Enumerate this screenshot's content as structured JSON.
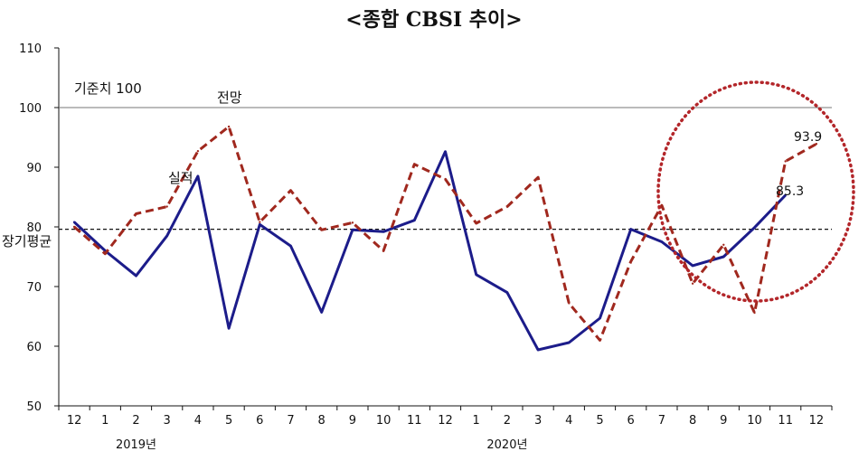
{
  "chart_data": {
    "type": "line",
    "title": "<종합 CBSI 추이>",
    "categories": [
      "12",
      "1",
      "2",
      "3",
      "4",
      "5",
      "6",
      "7",
      "8",
      "9",
      "10",
      "11",
      "12",
      "1",
      "2",
      "3",
      "4",
      "5",
      "6",
      "7",
      "8",
      "9",
      "10",
      "11",
      "12"
    ],
    "year_labels": [
      {
        "text": "2019년",
        "category_index": 2
      },
      {
        "text": "2020년",
        "category_index": 14
      }
    ],
    "ylim": [
      50,
      110
    ],
    "yticks": [
      50,
      60,
      70,
      80,
      90,
      100,
      110
    ],
    "series": [
      {
        "name": "실적",
        "color": "#1c1c8a",
        "style": "solid",
        "values": [
          80.8,
          76.0,
          71.8,
          78.5,
          88.5,
          63.0,
          80.4,
          76.8,
          65.7,
          79.5,
          79.2,
          81.1,
          92.6,
          72.0,
          69.0,
          59.4,
          60.6,
          64.7,
          79.6,
          77.5,
          73.5,
          75.0,
          79.9,
          85.3,
          null
        ]
      },
      {
        "name": "전망",
        "color": "#a0281e",
        "style": "dashed",
        "values": [
          80.0,
          75.5,
          82.2,
          83.4,
          92.7,
          96.8,
          80.8,
          86.1,
          79.5,
          80.7,
          76.0,
          90.5,
          88.0,
          80.6,
          83.4,
          88.3,
          67.2,
          61.0,
          74.2,
          83.6,
          70.5,
          77.0,
          65.6,
          91.0,
          93.9
        ]
      }
    ],
    "reference_lines": [
      {
        "name": "기준치 100",
        "value": 100,
        "style": "solid-thin",
        "color": "#777777"
      },
      {
        "name": "장기평균",
        "value": 79.6,
        "style": "dashed",
        "color": "#111111"
      }
    ],
    "annotations": {
      "base_label": "기준치 100",
      "forecast_label": "전망",
      "actual_label": "실적",
      "longterm_label": "장기평균",
      "last_actual_label": "85.3",
      "last_forecast_label": "93.9"
    },
    "highlight": {
      "shape": "dotted-circle",
      "color": "#b3262a"
    },
    "grid": false,
    "legend": "none"
  }
}
